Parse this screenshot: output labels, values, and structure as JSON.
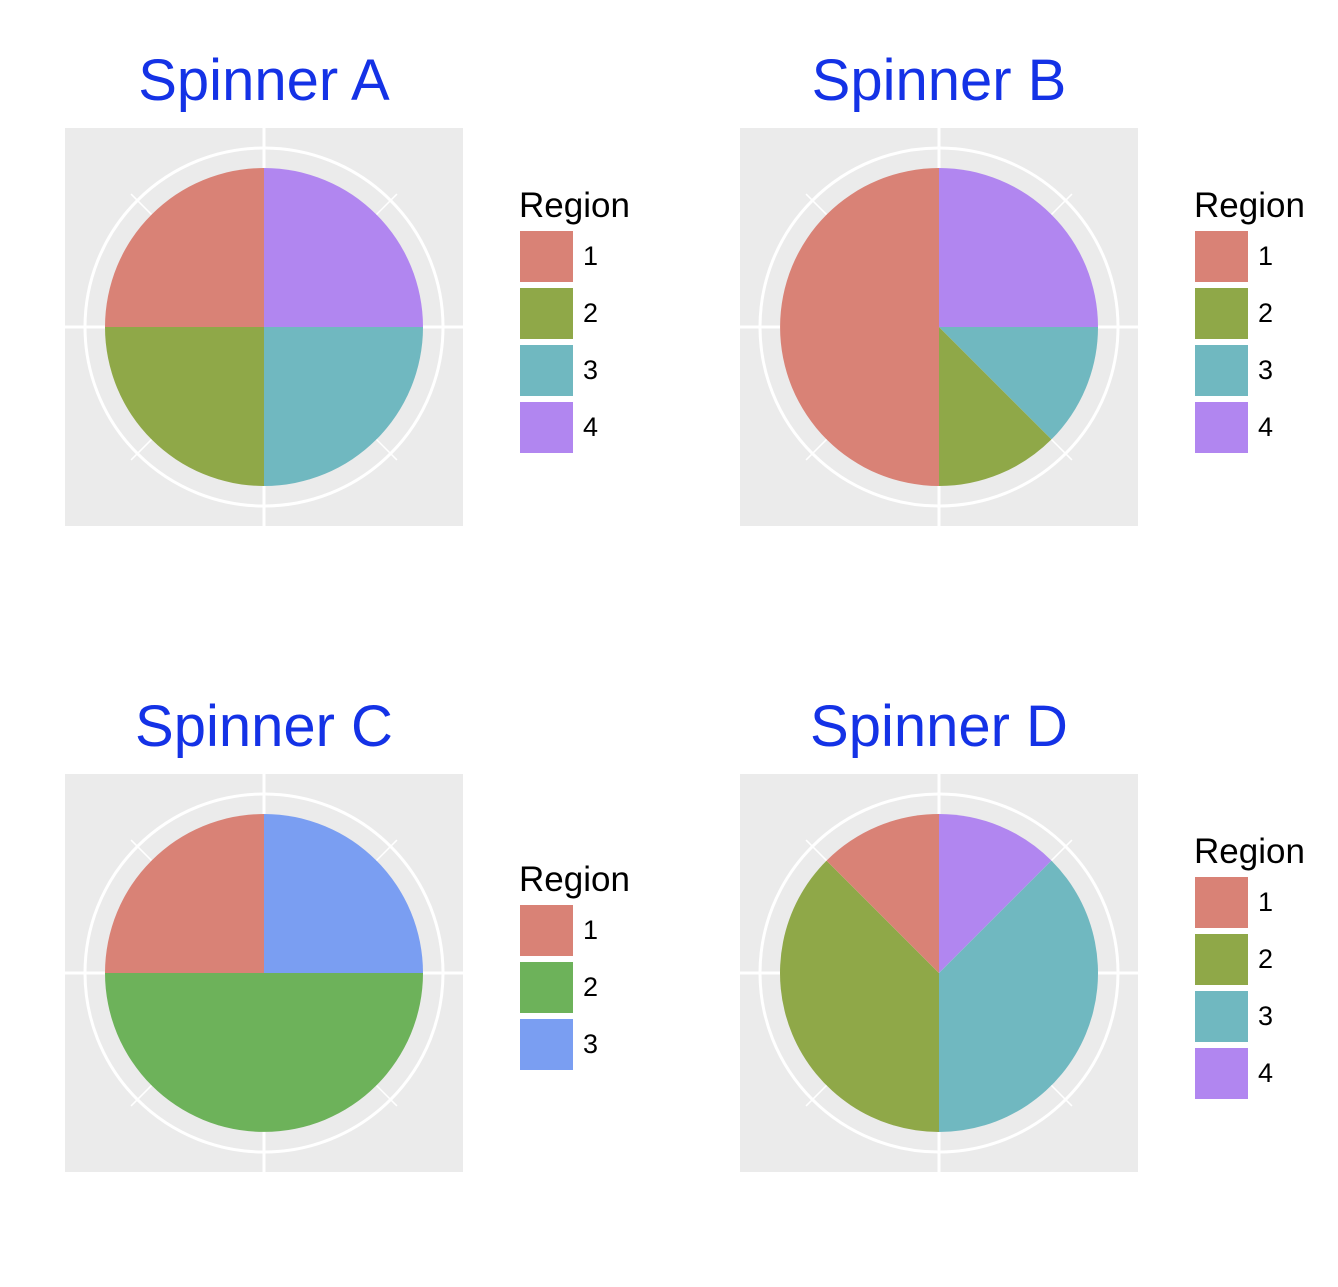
{
  "chart_data": [
    {
      "type": "pie",
      "title": "Spinner A",
      "legend_title": "Region",
      "legend_position": "right",
      "grid": true,
      "regions": [
        {
          "label": "1",
          "value": 0.25,
          "color": "#d98276"
        },
        {
          "label": "2",
          "value": 0.25,
          "color": "#8fa848"
        },
        {
          "label": "3",
          "value": 0.25,
          "color": "#70b8c0"
        },
        {
          "label": "4",
          "value": 0.25,
          "color": "#b186f0"
        }
      ]
    },
    {
      "type": "pie",
      "title": "Spinner B",
      "legend_title": "Region",
      "legend_position": "right",
      "grid": true,
      "regions": [
        {
          "label": "1",
          "value": 0.5,
          "color": "#d98276"
        },
        {
          "label": "2",
          "value": 0.125,
          "color": "#8fa848"
        },
        {
          "label": "3",
          "value": 0.125,
          "color": "#70b8c0"
        },
        {
          "label": "4",
          "value": 0.25,
          "color": "#b186f0"
        }
      ]
    },
    {
      "type": "pie",
      "title": "Spinner C",
      "legend_title": "Region",
      "legend_position": "right",
      "grid": true,
      "regions": [
        {
          "label": "1",
          "value": 0.25,
          "color": "#d98276"
        },
        {
          "label": "2",
          "value": 0.5,
          "color": "#6db25a"
        },
        {
          "label": "3",
          "value": 0.25,
          "color": "#7a9ef2"
        }
      ]
    },
    {
      "type": "pie",
      "title": "Spinner D",
      "legend_title": "Region",
      "legend_position": "right",
      "grid": true,
      "regions": [
        {
          "label": "1",
          "value": 0.125,
          "color": "#d98276"
        },
        {
          "label": "2",
          "value": 0.375,
          "color": "#8fa848"
        },
        {
          "label": "3",
          "value": 0.375,
          "color": "#70b8c0"
        },
        {
          "label": "4",
          "value": 0.125,
          "color": "#b186f0"
        }
      ]
    }
  ]
}
